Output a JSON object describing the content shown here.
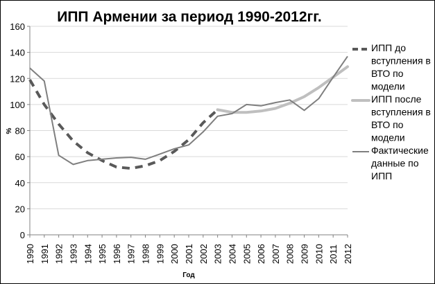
{
  "chart_data": {
    "type": "line",
    "title": "ИПП Армении за период 1990-2012гг.",
    "xlabel": "Год",
    "ylabel": "%",
    "ylim": [
      0,
      160
    ],
    "y_ticks": [
      "0",
      "20",
      "40",
      "60",
      "80",
      "100",
      "120",
      "140",
      "160"
    ],
    "x": [
      "1990",
      "1991",
      "1992",
      "1993",
      "1994",
      "1995",
      "1996",
      "1997",
      "1998",
      "1999",
      "2000",
      "2001",
      "2002",
      "2003",
      "2004",
      "2005",
      "2006",
      "2007",
      "2008",
      "2009",
      "2010",
      "2011",
      "2012"
    ],
    "grid": "horizontal",
    "legend_position": "right",
    "series": [
      {
        "name": "ИПП до вступления в ВТО по модели",
        "legend_lines": [
          "ИПП до",
          "вступления в",
          "ВТО по",
          "модели"
        ],
        "style": "dashed",
        "color": "#595959",
        "values": [
          119,
          100,
          85,
          72,
          63,
          57,
          52,
          51,
          53,
          57,
          64,
          73,
          86,
          96,
          null,
          null,
          null,
          null,
          null,
          null,
          null,
          null,
          null
        ]
      },
      {
        "name": "ИПП после вступления в ВТО по модели",
        "legend_lines": [
          "ИПП после",
          "вступления в",
          "ВТО по",
          "модели"
        ],
        "style": "solid-thick",
        "color": "#bfbfbf",
        "values": [
          null,
          null,
          null,
          null,
          null,
          null,
          null,
          null,
          null,
          null,
          null,
          null,
          null,
          96,
          94,
          94,
          95,
          97,
          101,
          106,
          113,
          121,
          129
        ]
      },
      {
        "name": "Фактические данные по ИПП",
        "legend_lines": [
          "Фактические",
          "данные по",
          "ИПП"
        ],
        "style": "solid",
        "color": "#7f7f7f",
        "values": [
          128,
          118,
          61,
          54,
          57,
          58,
          59,
          59.5,
          58,
          62,
          66,
          69,
          79,
          91,
          93,
          100,
          99,
          101.5,
          103.5,
          95.5,
          104.5,
          121,
          137
        ]
      }
    ]
  }
}
